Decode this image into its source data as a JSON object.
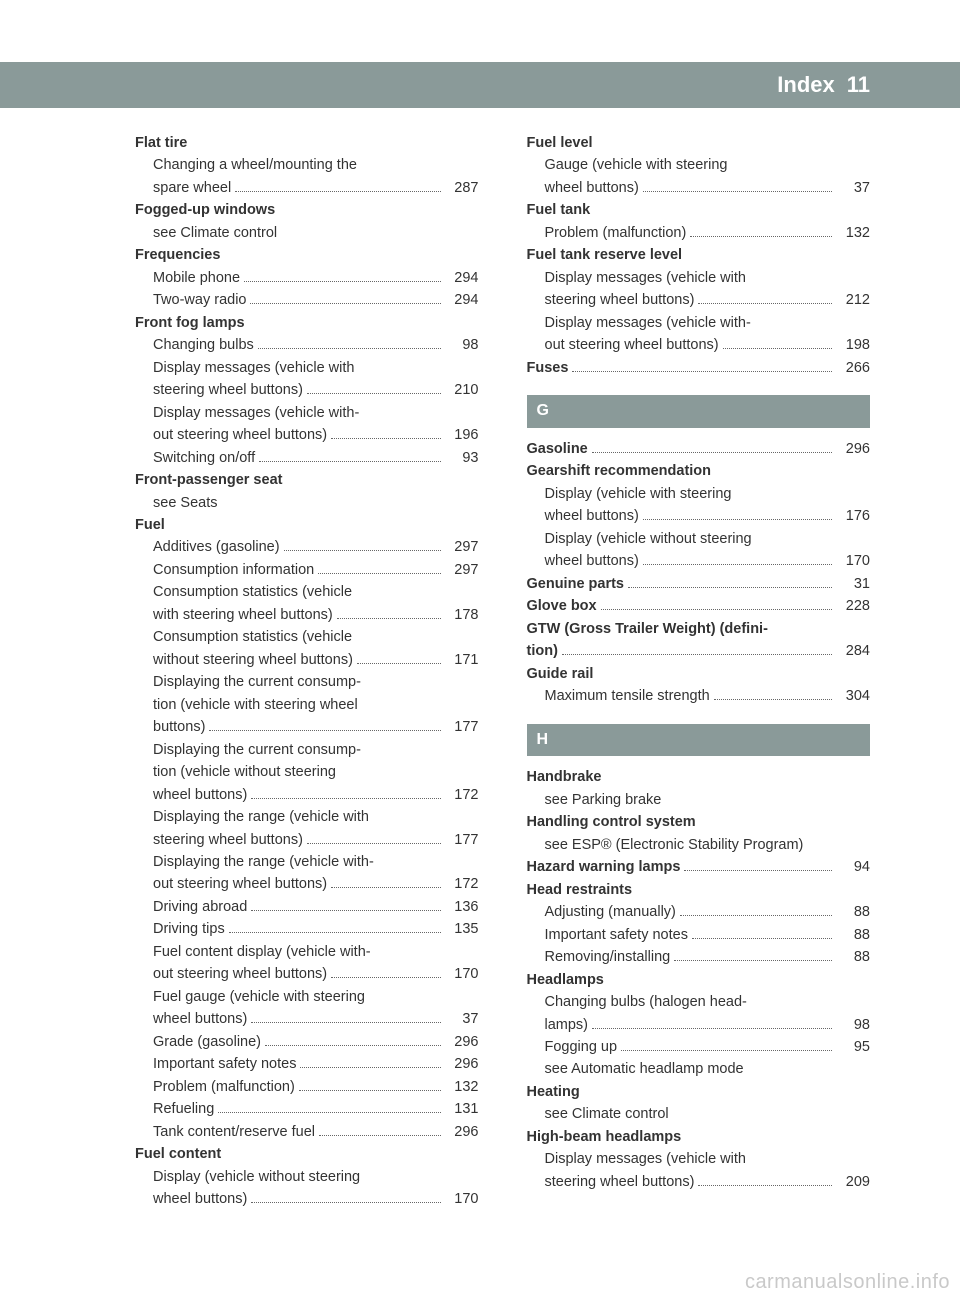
{
  "header": {
    "title": "Index",
    "page": "11"
  },
  "watermark": "carmanualsonline.info",
  "colors": {
    "bar_bg": "#8a9a99",
    "bar_text": "#ffffff",
    "body_text": "#333333",
    "watermark": "#c9c9c9"
  },
  "left": [
    {
      "type": "main",
      "text": "Flat tire"
    },
    {
      "type": "sub",
      "text": "Changing a wheel/mounting the"
    },
    {
      "type": "subpage",
      "text": "spare wheel",
      "page": "287"
    },
    {
      "type": "main",
      "text": "Fogged-up windows"
    },
    {
      "type": "sub",
      "text": "see Climate control"
    },
    {
      "type": "main",
      "text": "Frequencies"
    },
    {
      "type": "subpage",
      "text": "Mobile phone",
      "page": "294"
    },
    {
      "type": "subpage",
      "text": "Two-way radio",
      "page": "294"
    },
    {
      "type": "main",
      "text": "Front fog lamps"
    },
    {
      "type": "subpage",
      "text": "Changing bulbs",
      "page": "98"
    },
    {
      "type": "sub",
      "text": "Display messages (vehicle with"
    },
    {
      "type": "subpage",
      "text": "steering wheel buttons)",
      "page": "210"
    },
    {
      "type": "sub",
      "text": "Display messages (vehicle with-"
    },
    {
      "type": "subpage",
      "text": "out steering wheel buttons)",
      "page": "196"
    },
    {
      "type": "subpage",
      "text": "Switching on/off",
      "page": "93"
    },
    {
      "type": "main",
      "text": "Front-passenger seat"
    },
    {
      "type": "sub",
      "text": "see Seats"
    },
    {
      "type": "main",
      "text": "Fuel"
    },
    {
      "type": "subpage",
      "text": "Additives (gasoline)",
      "page": "297"
    },
    {
      "type": "subpage",
      "text": "Consumption information",
      "page": "297"
    },
    {
      "type": "sub",
      "text": "Consumption statistics (vehicle"
    },
    {
      "type": "subpage",
      "text": "with steering wheel buttons)",
      "page": "178"
    },
    {
      "type": "sub",
      "text": "Consumption statistics (vehicle"
    },
    {
      "type": "subpage",
      "text": "without steering wheel buttons)",
      "page": "171"
    },
    {
      "type": "sub",
      "text": "Displaying the current consump-"
    },
    {
      "type": "sub",
      "text": "tion (vehicle with steering wheel"
    },
    {
      "type": "subpage",
      "text": "buttons)",
      "page": "177"
    },
    {
      "type": "sub",
      "text": "Displaying the current consump-"
    },
    {
      "type": "sub",
      "text": "tion (vehicle without steering"
    },
    {
      "type": "subpage",
      "text": "wheel buttons)",
      "page": "172"
    },
    {
      "type": "sub",
      "text": "Displaying the range (vehicle with"
    },
    {
      "type": "subpage",
      "text": "steering wheel buttons)",
      "page": "177"
    },
    {
      "type": "sub",
      "text": "Displaying the range (vehicle with-"
    },
    {
      "type": "subpage",
      "text": "out steering wheel buttons)",
      "page": "172"
    },
    {
      "type": "subpage",
      "text": "Driving abroad",
      "page": "136"
    },
    {
      "type": "subpage",
      "text": "Driving tips",
      "page": "135"
    },
    {
      "type": "sub",
      "text": "Fuel content display (vehicle with-"
    },
    {
      "type": "subpage",
      "text": "out steering wheel buttons)",
      "page": "170"
    },
    {
      "type": "sub",
      "text": "Fuel gauge (vehicle with steering"
    },
    {
      "type": "subpage",
      "text": "wheel buttons)",
      "page": "37"
    },
    {
      "type": "subpage",
      "text": "Grade (gasoline)",
      "page": "296"
    },
    {
      "type": "subpage",
      "text": "Important safety notes",
      "page": "296"
    },
    {
      "type": "subpage",
      "text": "Problem (malfunction)",
      "page": "132"
    },
    {
      "type": "subpage",
      "text": "Refueling",
      "page": "131"
    },
    {
      "type": "subpage",
      "text": "Tank content/reserve fuel",
      "page": "296"
    },
    {
      "type": "main",
      "text": "Fuel content"
    },
    {
      "type": "sub",
      "text": "Display (vehicle without steering"
    },
    {
      "type": "subpage",
      "text": "wheel buttons)",
      "page": "170"
    }
  ],
  "right": [
    {
      "type": "main",
      "text": "Fuel level"
    },
    {
      "type": "sub",
      "text": "Gauge (vehicle with steering"
    },
    {
      "type": "subpage",
      "text": "wheel buttons)",
      "page": "37"
    },
    {
      "type": "main",
      "text": "Fuel tank"
    },
    {
      "type": "subpage",
      "text": "Problem (malfunction)",
      "page": "132"
    },
    {
      "type": "main",
      "text": "Fuel tank reserve level"
    },
    {
      "type": "sub",
      "text": "Display messages (vehicle with"
    },
    {
      "type": "subpage",
      "text": "steering wheel buttons)",
      "page": "212"
    },
    {
      "type": "sub",
      "text": "Display messages (vehicle with-"
    },
    {
      "type": "subpage",
      "text": "out steering wheel buttons)",
      "page": "198"
    },
    {
      "type": "mainpage",
      "text": "Fuses",
      "page": "266"
    },
    {
      "type": "letter",
      "text": "G"
    },
    {
      "type": "mainpage",
      "text": "Gasoline",
      "page": "296"
    },
    {
      "type": "main",
      "text": "Gearshift recommendation"
    },
    {
      "type": "sub",
      "text": "Display (vehicle with steering"
    },
    {
      "type": "subpage",
      "text": "wheel buttons)",
      "page": "176"
    },
    {
      "type": "sub",
      "text": "Display (vehicle without steering"
    },
    {
      "type": "subpage",
      "text": "wheel buttons)",
      "page": "170"
    },
    {
      "type": "mainpage",
      "text": "Genuine parts",
      "page": "31"
    },
    {
      "type": "mainpage",
      "text": "Glove box",
      "page": "228"
    },
    {
      "type": "main",
      "text": "GTW (Gross Trailer Weight) (defini-"
    },
    {
      "type": "mainpage",
      "text": "tion)",
      "page": "284"
    },
    {
      "type": "main",
      "text": "Guide rail"
    },
    {
      "type": "subpage",
      "text": "Maximum tensile strength",
      "page": "304"
    },
    {
      "type": "letter",
      "text": "H"
    },
    {
      "type": "main",
      "text": "Handbrake"
    },
    {
      "type": "sub",
      "text": "see Parking brake"
    },
    {
      "type": "main",
      "text": "Handling control system"
    },
    {
      "type": "sub",
      "text": "see ESP® (Electronic Stability Program)"
    },
    {
      "type": "mainpage",
      "text": "Hazard warning lamps",
      "page": "94"
    },
    {
      "type": "main",
      "text": "Head restraints"
    },
    {
      "type": "subpage",
      "text": "Adjusting (manually)",
      "page": "88"
    },
    {
      "type": "subpage",
      "text": "Important safety notes",
      "page": "88"
    },
    {
      "type": "subpage",
      "text": "Removing/installing",
      "page": "88"
    },
    {
      "type": "main",
      "text": "Headlamps"
    },
    {
      "type": "sub",
      "text": "Changing bulbs (halogen head-"
    },
    {
      "type": "subpage",
      "text": "lamps)",
      "page": "98"
    },
    {
      "type": "subpage",
      "text": "Fogging up",
      "page": "95"
    },
    {
      "type": "sub",
      "text": "see Automatic headlamp mode"
    },
    {
      "type": "main",
      "text": "Heating"
    },
    {
      "type": "sub",
      "text": "see Climate control"
    },
    {
      "type": "main",
      "text": "High-beam headlamps"
    },
    {
      "type": "sub",
      "text": "Display messages (vehicle with"
    },
    {
      "type": "subpage",
      "text": "steering wheel buttons)",
      "page": "209"
    }
  ]
}
